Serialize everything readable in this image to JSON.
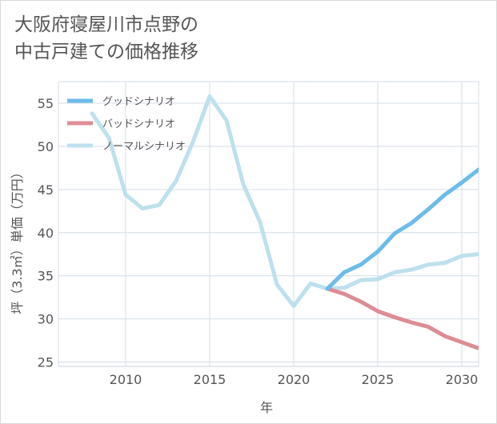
{
  "title_lines": [
    "大阪府寝屋川市点野の",
    "中古戸建ての価格推移"
  ],
  "chart_data": {
    "type": "line",
    "title": "大阪府寝屋川市点野の中古戸建ての価格推移",
    "xlabel": "年",
    "ylabel": "坪（3.3㎡）単価（万円）",
    "xlim": [
      2006,
      2031
    ],
    "ylim": [
      24.5,
      57.5
    ],
    "xticks": [
      2010,
      2015,
      2020,
      2025,
      2030
    ],
    "yticks": [
      25,
      30,
      35,
      40,
      45,
      50,
      55
    ],
    "grid": true,
    "legend_position": "top-left",
    "series": [
      {
        "name": "グッドシナリオ",
        "color": "#6bbcea",
        "x": [
          2022,
          2023,
          2024,
          2025,
          2026,
          2027,
          2028,
          2029,
          2030,
          2031
        ],
        "y": [
          33.5,
          35.4,
          36.3,
          37.8,
          39.9,
          41.1,
          42.7,
          44.4,
          45.8,
          47.3
        ]
      },
      {
        "name": "バッドシナリオ",
        "color": "#dc8d94",
        "x": [
          2022,
          2023,
          2024,
          2025,
          2026,
          2027,
          2028,
          2029,
          2030,
          2031
        ],
        "y": [
          33.5,
          32.9,
          32.0,
          30.9,
          30.2,
          29.6,
          29.1,
          28.0,
          27.3,
          26.6
        ]
      },
      {
        "name": "ノーマルシナリオ",
        "color": "#bde0ee",
        "x": [
          2008,
          2009,
          2010,
          2011,
          2012,
          2013,
          2014,
          2015,
          2016,
          2017,
          2018,
          2019,
          2020,
          2021,
          2022,
          2023,
          2024,
          2025,
          2026,
          2027,
          2028,
          2029,
          2030,
          2031
        ],
        "y": [
          53.8,
          51.0,
          44.4,
          42.8,
          43.2,
          46.0,
          50.5,
          55.8,
          53.0,
          45.6,
          41.2,
          34.0,
          31.5,
          34.1,
          33.5,
          33.6,
          34.5,
          34.6,
          35.4,
          35.7,
          36.3,
          36.5,
          37.3,
          37.5
        ]
      }
    ]
  }
}
